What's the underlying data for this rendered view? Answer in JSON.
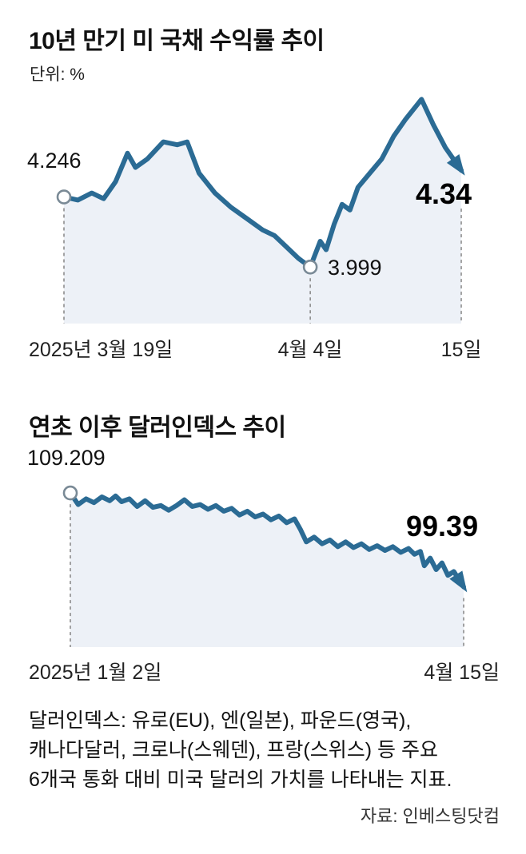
{
  "colors": {
    "line": "#2b6b94",
    "fill": "#edf1f7",
    "dash": "#8c8c8c",
    "marker": "#7a8a96"
  },
  "chart_data": [
    {
      "type": "line",
      "title": "10년 만기 미 국채 수익률 추이",
      "unit_label": "단위: %",
      "series_name": "10-year US Treasury yield (%)",
      "x_ticks": [
        "2025년 3월 19일",
        "4월 4일",
        "15일"
      ],
      "ylim": [
        3.8,
        4.65
      ],
      "grid": false,
      "x": [
        0,
        0.035,
        0.07,
        0.1,
        0.13,
        0.16,
        0.18,
        0.21,
        0.25,
        0.285,
        0.31,
        0.34,
        0.38,
        0.42,
        0.46,
        0.5,
        0.53,
        0.56,
        0.59,
        0.62,
        0.645,
        0.66,
        0.68,
        0.7,
        0.72,
        0.74,
        0.77,
        0.8,
        0.83,
        0.86,
        0.9,
        0.93,
        0.96,
        1.0
      ],
      "values": [
        4.246,
        4.235,
        4.26,
        4.24,
        4.3,
        4.4,
        4.35,
        4.38,
        4.44,
        4.43,
        4.44,
        4.33,
        4.26,
        4.21,
        4.17,
        4.13,
        4.11,
        4.07,
        4.03,
        3.999,
        4.09,
        4.06,
        4.15,
        4.22,
        4.2,
        4.28,
        4.33,
        4.38,
        4.46,
        4.52,
        4.59,
        4.5,
        4.42,
        4.34
      ],
      "labels": {
        "start": "4.246",
        "min": "3.999",
        "end": "4.34"
      },
      "markers": [
        {
          "kind": "open-circle",
          "index": 0
        },
        {
          "kind": "open-circle",
          "index": 19
        }
      ],
      "arrow_end": true,
      "dashes": [
        {
          "f": 0
        },
        {
          "f": 0.62
        },
        {
          "f": 1,
          "pad": 48
        }
      ]
    },
    {
      "type": "line",
      "title": "연초 이후 달러인덱스 추이",
      "series_name": "US Dollar Index",
      "x_ticks": [
        "2025년 1월 2일",
        "4월 15일"
      ],
      "ylim": [
        93.1,
        109.8
      ],
      "grid": false,
      "x": [
        0,
        0.02,
        0.04,
        0.06,
        0.08,
        0.1,
        0.115,
        0.13,
        0.15,
        0.17,
        0.19,
        0.21,
        0.23,
        0.25,
        0.27,
        0.29,
        0.31,
        0.33,
        0.35,
        0.37,
        0.39,
        0.41,
        0.43,
        0.45,
        0.47,
        0.49,
        0.51,
        0.53,
        0.55,
        0.57,
        0.585,
        0.6,
        0.62,
        0.64,
        0.66,
        0.68,
        0.7,
        0.72,
        0.74,
        0.76,
        0.78,
        0.8,
        0.82,
        0.84,
        0.86,
        0.875,
        0.89,
        0.9,
        0.915,
        0.93,
        0.945,
        0.96,
        0.975,
        1.0
      ],
      "values": [
        109.209,
        108.0,
        108.6,
        108.2,
        108.8,
        108.4,
        108.9,
        108.3,
        108.6,
        107.8,
        108.4,
        107.7,
        107.9,
        107.4,
        107.9,
        108.5,
        107.8,
        108.0,
        107.5,
        107.9,
        107.3,
        107.6,
        106.9,
        107.3,
        106.7,
        107.0,
        106.4,
        106.8,
        106.1,
        106.5,
        105.4,
        104.1,
        104.6,
        103.9,
        104.3,
        103.6,
        104.1,
        103.5,
        103.9,
        103.3,
        103.7,
        103.2,
        103.6,
        103.0,
        103.4,
        102.8,
        103.1,
        101.6,
        102.4,
        101.2,
        101.9,
        100.6,
        101.0,
        99.39
      ],
      "labels": {
        "start": "109.209",
        "end": "99.39"
      },
      "markers": [
        {
          "kind": "open-circle",
          "index": 0
        }
      ],
      "arrow_end": true,
      "dashes": [
        {
          "f": 0
        },
        {
          "f": 1
        }
      ]
    }
  ],
  "footnote": {
    "lines": [
      "달러인덱스: 유로(EU), 엔(일본), 파운드(영국),",
      "캐나다달러, 크로나(스웨덴), 프랑(스위스) 등 주요",
      "6개국 통화 대비 미국 달러의 가치를 나타내는 지표."
    ]
  },
  "source": "자료: 인베스팅닷컴"
}
